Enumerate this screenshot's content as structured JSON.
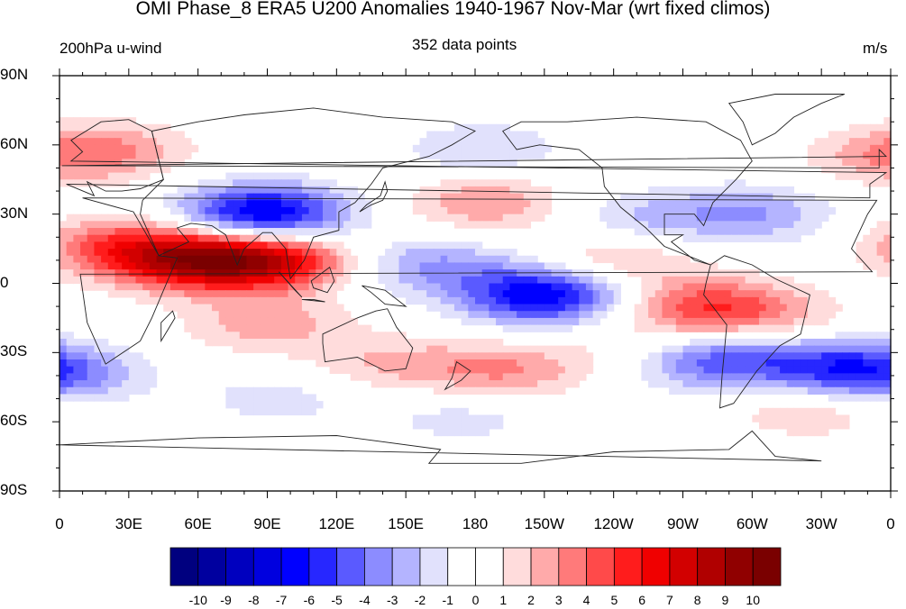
{
  "title": "OMI Phase_8 ERA5 U200 Anomalies 1940-1967 Nov-Mar (wrt fixed climos)",
  "left_label": "200hPa u-wind",
  "center_label": "352 data points",
  "right_label": "m/s",
  "lat_ticks": [
    "90N",
    "60N",
    "30N",
    "0",
    "30S",
    "60S",
    "90S"
  ],
  "lon_ticks": [
    "0",
    "30E",
    "60E",
    "90E",
    "120E",
    "150E",
    "180",
    "150W",
    "120W",
    "90W",
    "60W",
    "30W",
    "0"
  ],
  "colorbar": {
    "levels": [
      "-10",
      "-9",
      "-8",
      "-7",
      "-6",
      "-5",
      "-4",
      "-3",
      "-2",
      "-1",
      "0",
      "1",
      "2",
      "3",
      "4",
      "5",
      "6",
      "7",
      "8",
      "9",
      "10"
    ],
    "colors": [
      "#00007f",
      "#00009f",
      "#0000bf",
      "#0000df",
      "#0000ff",
      "#2727ff",
      "#5a5aff",
      "#8c8cff",
      "#b4b4ff",
      "#e1e1fc",
      "#ffffff",
      "#ffffff",
      "#ffdcdc",
      "#ffaaaa",
      "#ff7a7a",
      "#ff4a4a",
      "#ff1c1c",
      "#f00000",
      "#d20000",
      "#b00000",
      "#900000",
      "#7a0000"
    ]
  },
  "anomaly_centers": [
    {
      "lon": 88,
      "lat": 30,
      "value": -7.5
    },
    {
      "lon": 55,
      "lat": 10,
      "value": 6.5
    },
    {
      "lon": 90,
      "lat": 10,
      "value": 7
    },
    {
      "lon": 25,
      "lat": 17,
      "value": 3.5
    },
    {
      "lon": 90,
      "lat": -18,
      "value": 2.5
    },
    {
      "lon": 210,
      "lat": -5,
      "value": -7
    },
    {
      "lon": 160,
      "lat": 8,
      "value": -3
    },
    {
      "lon": 280,
      "lat": -10,
      "value": 4.5
    },
    {
      "lon": 283,
      "lat": -33,
      "value": -5
    },
    {
      "lon": 340,
      "lat": -37,
      "value": -5
    },
    {
      "lon": 185,
      "lat": 35,
      "value": 3
    },
    {
      "lon": 300,
      "lat": 30,
      "value": -3
    },
    {
      "lon": 360,
      "lat": 55,
      "value": 2.5
    },
    {
      "lon": 25,
      "lat": 58,
      "value": 2
    },
    {
      "lon": 183,
      "lat": 58,
      "value": -2
    },
    {
      "lon": 240,
      "lat": 10,
      "value": 2.5
    },
    {
      "lon": 250,
      "lat": 28,
      "value": -2
    },
    {
      "lon": 193,
      "lat": -38,
      "value": 3
    },
    {
      "lon": 143,
      "lat": -35,
      "value": 2
    },
    {
      "lon": 95,
      "lat": -50,
      "value": -1.5
    },
    {
      "lon": 175,
      "lat": -58,
      "value": -1.5
    },
    {
      "lon": 325,
      "lat": -55,
      "value": 2
    },
    {
      "lon": 5,
      "lat": -40,
      "value": -2
    },
    {
      "lon": 310,
      "lat": -15,
      "value": 1.5
    },
    {
      "lon": 255,
      "lat": -28,
      "value": 1.5
    }
  ]
}
